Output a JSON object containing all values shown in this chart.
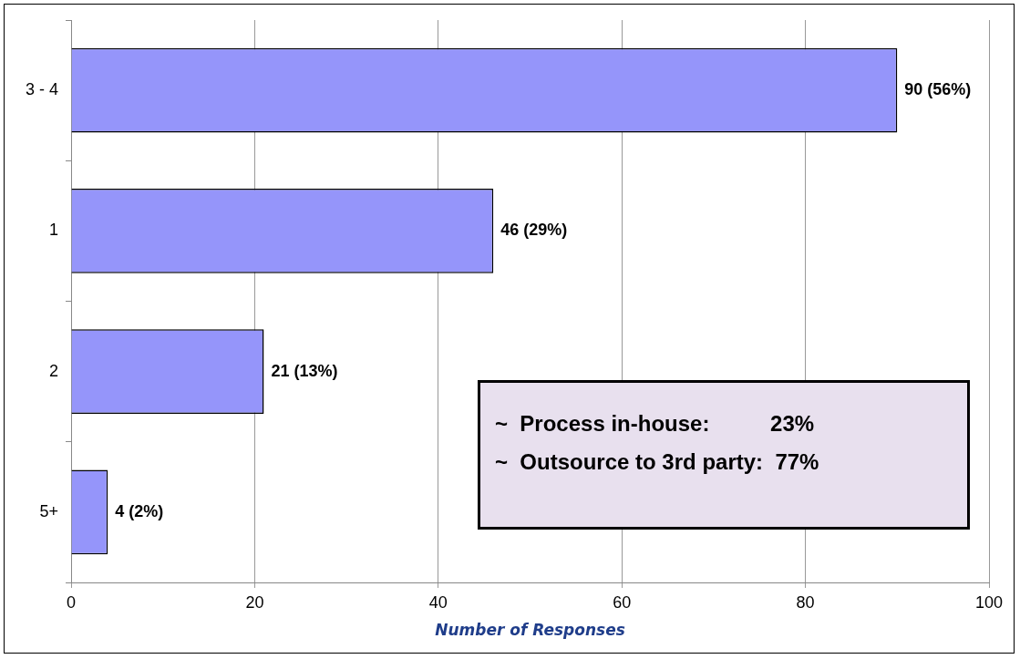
{
  "chart_data": {
    "type": "bar",
    "orientation": "horizontal",
    "xlabel": "Number of Responses",
    "categories": [
      "3 - 4",
      "1",
      "2",
      "5+"
    ],
    "values": [
      90,
      46,
      21,
      4
    ],
    "value_labels": [
      "90 (56%)",
      "46 (29%)",
      "21 (13%)",
      "4 (2%)"
    ],
    "color": "#9595fa",
    "xlim": [
      0,
      100
    ],
    "xticks": [
      0,
      20,
      40,
      60,
      80,
      100
    ],
    "grid": "x",
    "legend": false,
    "annotations": [
      "~  Process in-house:          23%",
      "~  Outsource to 3rd party:  77%"
    ]
  }
}
